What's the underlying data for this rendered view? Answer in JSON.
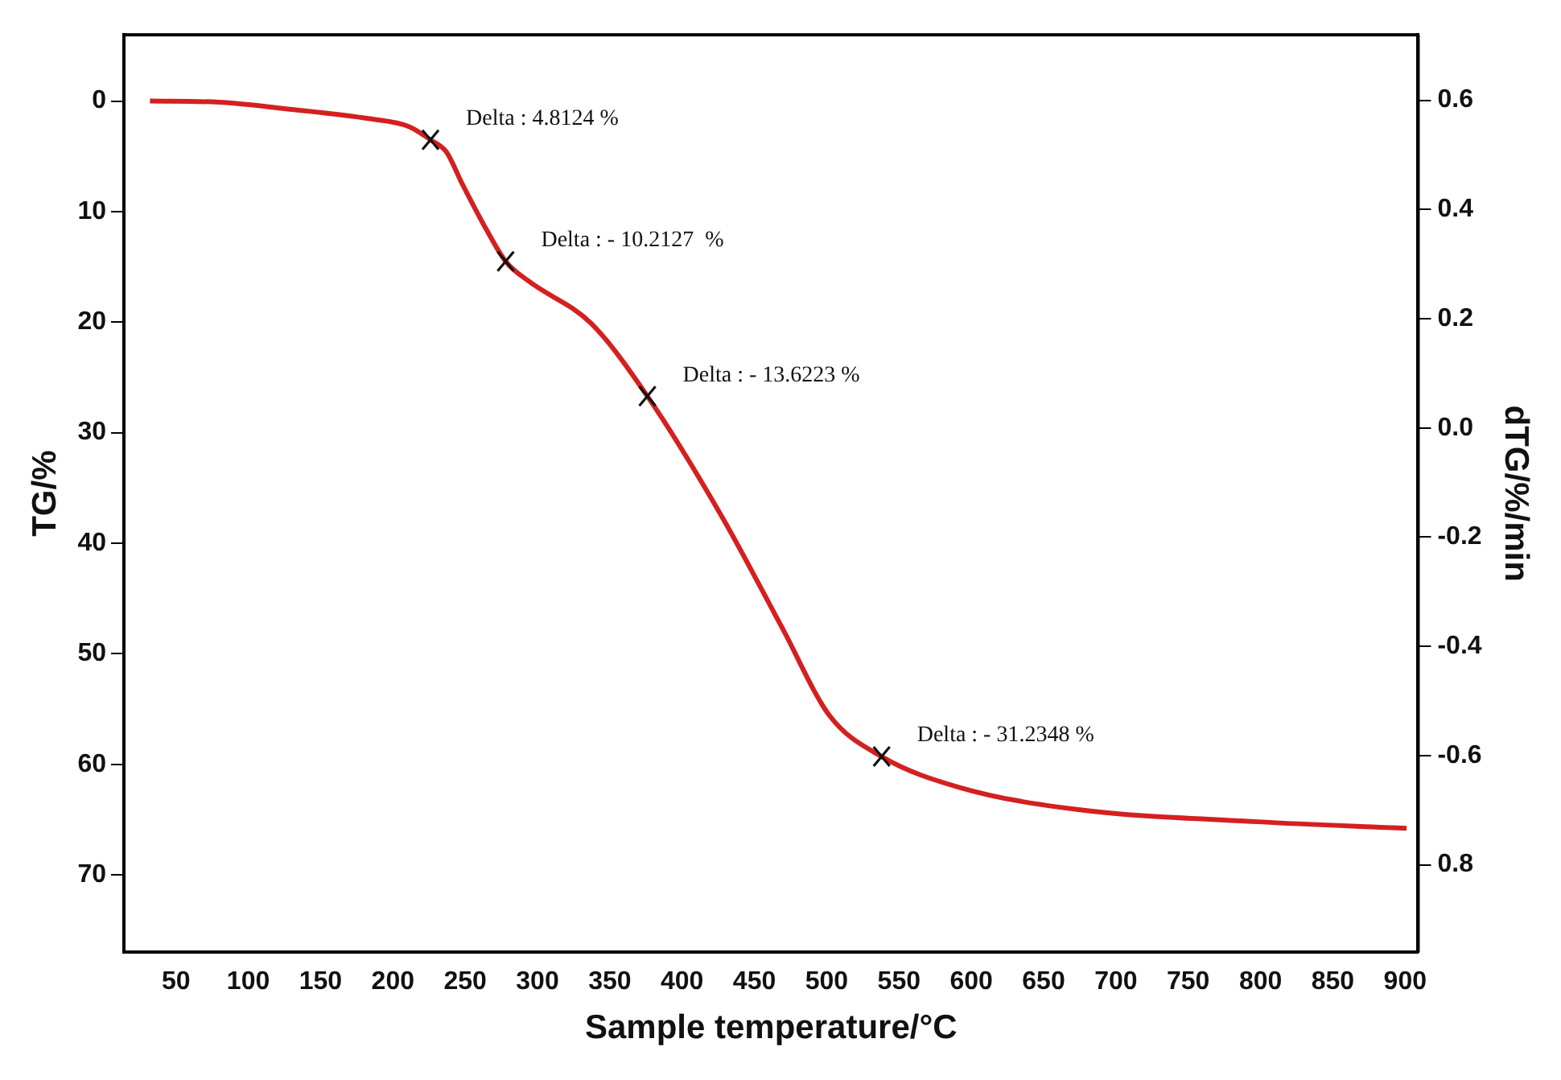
{
  "chart_data": {
    "type": "line",
    "xlabel": "Sample temperature/°C",
    "ylabel": "TG/%",
    "y2label": "dTG/%/min",
    "x": [
      32,
      80,
      126,
      184,
      211,
      226,
      237,
      248,
      265,
      278,
      294,
      337,
      376,
      428,
      469,
      502,
      538,
      592,
      674,
      798,
      901
    ],
    "series": [
      {
        "color": "#d42020",
        "values": [
          0,
          0.1,
          0.7,
          1.6,
          2.3,
          3.5,
          4.6,
          7.5,
          11.7,
          14.5,
          16.3,
          20.1,
          26.7,
          37.7,
          47.6,
          55.6,
          59.3,
          62.1,
          64.1,
          65.2,
          65.8
        ]
      }
    ],
    "xlim": [
      14,
      909
    ],
    "xticks": [
      50,
      100,
      150,
      200,
      250,
      300,
      350,
      400,
      450,
      500,
      550,
      600,
      650,
      700,
      750,
      800,
      850,
      900
    ],
    "ylim": [
      77,
      -6
    ],
    "yticks": [
      0,
      10,
      20,
      30,
      40,
      50,
      60,
      70
    ],
    "y2lim": [
      -0.96,
      0.72
    ],
    "y2ticks": [
      {
        "value": 0.6,
        "label": "0.6"
      },
      {
        "value": 0.4,
        "label": "0.4"
      },
      {
        "value": 0.2,
        "label": "0.2"
      },
      {
        "value": 0,
        "label": "0.0"
      },
      {
        "value": -0.2,
        "label": "-0.2"
      },
      {
        "value": -0.4,
        "label": "-0.4"
      },
      {
        "value": -0.6,
        "label": "-0.6"
      },
      {
        "value": -0.8,
        "label": "0.8"
      }
    ],
    "annotations": [
      {
        "text": "Delta : 4.8124 %",
        "x": 226,
        "y": 3.5
      },
      {
        "text": "Delta : - 10.2127  %",
        "x": 278,
        "y": 14.5
      },
      {
        "text": "Delta : - 13.6223 %",
        "x": 376,
        "y": 26.7
      },
      {
        "text": "Delta : - 31.2348 %",
        "x": 538,
        "y": 59.3
      }
    ],
    "grid": false,
    "legend": false,
    "marker": "none",
    "line_style": "solid"
  }
}
